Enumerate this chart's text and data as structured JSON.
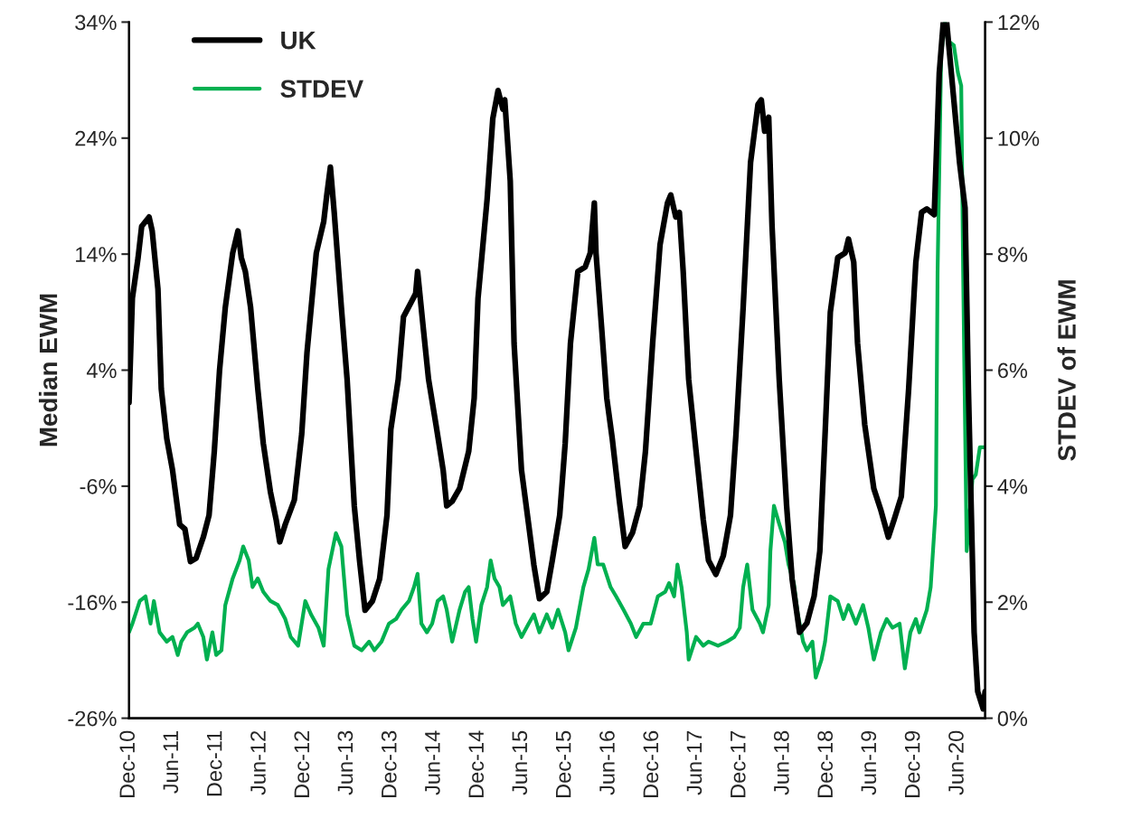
{
  "chart_data": {
    "type": "line",
    "ylabel": "Median EWM",
    "y2label": "STDEV of EWM",
    "legend": "top left",
    "grid": false,
    "marker": "none",
    "line_style": "solid",
    "xlim": [
      "2010-12-01",
      "2020-09-23"
    ],
    "xticks": [
      {
        "value": "2010-12-01",
        "label": "Dec-10"
      },
      {
        "value": "2011-06-01",
        "label": "Jun-11"
      },
      {
        "value": "2011-12-01",
        "label": "Dec-11"
      },
      {
        "value": "2012-06-01",
        "label": "Jun-12"
      },
      {
        "value": "2012-12-01",
        "label": "Dec-12"
      },
      {
        "value": "2013-06-01",
        "label": "Jun-13"
      },
      {
        "value": "2013-12-01",
        "label": "Dec-13"
      },
      {
        "value": "2014-06-01",
        "label": "Jun-14"
      },
      {
        "value": "2014-12-01",
        "label": "Dec-14"
      },
      {
        "value": "2015-06-01",
        "label": "Jun-15"
      },
      {
        "value": "2015-12-01",
        "label": "Dec-15"
      },
      {
        "value": "2016-06-01",
        "label": "Jun-16"
      },
      {
        "value": "2016-12-01",
        "label": "Dec-16"
      },
      {
        "value": "2017-06-01",
        "label": "Jun-17"
      },
      {
        "value": "2017-12-01",
        "label": "Dec-17"
      },
      {
        "value": "2018-06-01",
        "label": "Jun-18"
      },
      {
        "value": "2018-12-01",
        "label": "Dec-18"
      },
      {
        "value": "2019-06-01",
        "label": "Jun-19"
      },
      {
        "value": "2019-12-01",
        "label": "Dec-19"
      },
      {
        "value": "2020-06-01",
        "label": "Jun-20"
      }
    ],
    "ylim": [
      -26,
      34
    ],
    "yticks": [
      {
        "value": -26,
        "label": "-26%"
      },
      {
        "value": -16,
        "label": "-16%"
      },
      {
        "value": -6,
        "label": "-6%"
      },
      {
        "value": 4,
        "label": "4%"
      },
      {
        "value": 14,
        "label": "14%"
      },
      {
        "value": 24,
        "label": "24%"
      },
      {
        "value": 34,
        "label": "34%"
      }
    ],
    "y2lim": [
      0,
      12
    ],
    "y2ticks": [
      {
        "value": 0,
        "label": "0%"
      },
      {
        "value": 2,
        "label": "2%"
      },
      {
        "value": 4,
        "label": "4%"
      },
      {
        "value": 6,
        "label": "6%"
      },
      {
        "value": 8,
        "label": "8%"
      },
      {
        "value": 10,
        "label": "10%"
      },
      {
        "value": 12,
        "label": "12%"
      }
    ],
    "series": [
      {
        "name": "UK",
        "color": "#000000",
        "axis": "y",
        "x": [
          "2010-12-01",
          "2010-12-15",
          "2011-01-08",
          "2011-01-23",
          "2011-02-23",
          "2011-03-08",
          "2011-04-01",
          "2011-04-15",
          "2011-05-08",
          "2011-06-01",
          "2011-07-01",
          "2011-07-23",
          "2011-08-15",
          "2011-09-08",
          "2011-10-08",
          "2011-11-01",
          "2011-11-23",
          "2011-12-15",
          "2012-01-08",
          "2012-02-08",
          "2012-03-01",
          "2012-03-15",
          "2012-04-01",
          "2012-04-23",
          "2012-05-23",
          "2012-06-15",
          "2012-07-15",
          "2012-08-08",
          "2012-08-23",
          "2012-09-15",
          "2012-10-23",
          "2012-11-23",
          "2012-12-15",
          "2013-01-23",
          "2013-02-23",
          "2013-03-08",
          "2013-03-23",
          "2013-04-08",
          "2013-05-08",
          "2013-06-01",
          "2013-07-01",
          "2013-07-23",
          "2013-08-15",
          "2013-09-15",
          "2013-10-15",
          "2013-11-15",
          "2013-12-01",
          "2014-01-01",
          "2014-01-23",
          "2014-02-23",
          "2014-03-15",
          "2014-03-23",
          "2014-04-15",
          "2014-05-08",
          "2014-06-08",
          "2014-07-08",
          "2014-07-23",
          "2014-08-15",
          "2014-09-15",
          "2014-10-23",
          "2014-11-15",
          "2014-12-01",
          "2015-01-08",
          "2015-02-01",
          "2015-02-23",
          "2015-03-15",
          "2015-03-23",
          "2015-04-15",
          "2015-05-01",
          "2015-06-01",
          "2015-07-01",
          "2015-07-23",
          "2015-08-15",
          "2015-09-15",
          "2015-10-08",
          "2015-11-08",
          "2015-12-01",
          "2015-12-23",
          "2016-01-23",
          "2016-02-23",
          "2016-03-15",
          "2016-04-01",
          "2016-04-08",
          "2016-05-01",
          "2016-05-23",
          "2016-06-15",
          "2016-07-15",
          "2016-08-08",
          "2016-09-08",
          "2016-10-08",
          "2016-11-01",
          "2016-12-01",
          "2017-01-01",
          "2017-02-01",
          "2017-02-15",
          "2017-03-08",
          "2017-03-23",
          "2017-04-08",
          "2017-05-01",
          "2017-06-01",
          "2017-07-01",
          "2017-07-23",
          "2017-08-23",
          "2017-09-23",
          "2017-10-23",
          "2017-11-15",
          "2017-12-15",
          "2018-01-15",
          "2018-02-15",
          "2018-03-01",
          "2018-03-15",
          "2018-04-01",
          "2018-04-15",
          "2018-05-15",
          "2018-06-15",
          "2018-07-08",
          "2018-08-08",
          "2018-09-08",
          "2018-10-08",
          "2018-11-01",
          "2018-11-23",
          "2018-12-15",
          "2019-01-15",
          "2019-02-15",
          "2019-03-01",
          "2019-03-23",
          "2019-04-08",
          "2019-05-08",
          "2019-06-15",
          "2019-07-15",
          "2019-08-15",
          "2019-09-08",
          "2019-10-08",
          "2019-11-08",
          "2019-12-08",
          "2020-01-01",
          "2020-01-23",
          "2020-02-23",
          "2020-03-15",
          "2020-04-01",
          "2020-04-15",
          "2020-05-15",
          "2020-06-08",
          "2020-07-01",
          "2020-07-15",
          "2020-08-08",
          "2020-08-23",
          "2020-09-15",
          "2020-09-23"
        ],
        "values": [
          1.2,
          10.2,
          13.7,
          16.4,
          17.2,
          16.0,
          11.0,
          2.4,
          -1.9,
          -4.6,
          -9.3,
          -9.7,
          -12.5,
          -12.2,
          -10.4,
          -8.5,
          -3.0,
          4.0,
          9.4,
          14.1,
          16.0,
          13.7,
          12.5,
          9.4,
          2.4,
          -2.3,
          -6.5,
          -8.9,
          -10.8,
          -9.3,
          -7.2,
          -1.5,
          5.5,
          14.1,
          16.8,
          19.1,
          21.5,
          17.6,
          9.4,
          3.2,
          -7.7,
          -12.4,
          -16.7,
          -15.9,
          -14.0,
          -8.5,
          -1.1,
          3.2,
          8.6,
          9.8,
          10.6,
          12.5,
          7.8,
          3.2,
          -0.7,
          -4.6,
          -7.7,
          -7.3,
          -6.2,
          -3.0,
          1.6,
          10.2,
          18.7,
          25.7,
          28.1,
          26.5,
          27.3,
          20.3,
          6.3,
          -4.6,
          -9.3,
          -12.8,
          -15.7,
          -15.1,
          -12.4,
          -8.5,
          -2.3,
          6.3,
          12.5,
          12.9,
          14.1,
          18.4,
          14.1,
          7.8,
          1.6,
          -1.9,
          -7.3,
          -11.2,
          -10.0,
          -7.7,
          -3.0,
          6.3,
          14.8,
          18.4,
          19.1,
          17.2,
          17.6,
          12.5,
          3.2,
          -3.0,
          -8.9,
          -12.4,
          -13.6,
          -12.0,
          -8.5,
          -1.5,
          9.4,
          21.9,
          26.9,
          27.3,
          24.6,
          25.8,
          16.4,
          3.2,
          -7.7,
          -14.0,
          -18.6,
          -17.8,
          -15.5,
          -11.6,
          -1.5,
          9.0,
          13.7,
          14.1,
          15.3,
          13.3,
          6.3,
          -0.7,
          -6.2,
          -8.1,
          -10.4,
          -8.9,
          -6.9,
          2.4,
          13.3,
          17.6,
          17.9,
          17.4,
          29.6,
          34,
          34,
          27.3,
          21.9,
          18.0,
          2.4,
          -18.6,
          -23.7,
          -25.2,
          -23.7
        ]
      },
      {
        "name": "STDEV",
        "color": "#00b050",
        "axis": "y2",
        "x": [
          "2010-12-01",
          "2010-12-15",
          "2011-01-15",
          "2011-02-08",
          "2011-03-01",
          "2011-03-15",
          "2011-04-08",
          "2011-05-08",
          "2011-06-01",
          "2011-06-23",
          "2011-07-08",
          "2011-08-01",
          "2011-09-01",
          "2011-09-15",
          "2011-10-08",
          "2011-10-23",
          "2011-11-15",
          "2011-12-01",
          "2011-12-23",
          "2012-01-08",
          "2012-02-08",
          "2012-03-08",
          "2012-03-23",
          "2012-04-15",
          "2012-05-01",
          "2012-05-23",
          "2012-06-15",
          "2012-07-15",
          "2012-08-15",
          "2012-09-15",
          "2012-10-08",
          "2012-11-08",
          "2012-12-08",
          "2013-01-01",
          "2013-02-01",
          "2013-02-23",
          "2013-03-15",
          "2013-04-15",
          "2013-05-08",
          "2013-06-01",
          "2013-07-01",
          "2013-08-01",
          "2013-09-01",
          "2013-09-23",
          "2013-10-23",
          "2013-11-23",
          "2013-12-23",
          "2014-01-15",
          "2014-02-15",
          "2014-03-08",
          "2014-03-23",
          "2014-04-08",
          "2014-05-01",
          "2014-05-23",
          "2014-06-15",
          "2014-07-08",
          "2014-07-23",
          "2014-08-15",
          "2014-09-15",
          "2014-10-08",
          "2014-10-23",
          "2014-11-08",
          "2014-11-23",
          "2014-12-15",
          "2015-01-08",
          "2015-01-23",
          "2015-02-08",
          "2015-03-01",
          "2015-03-15",
          "2015-04-15",
          "2015-05-08",
          "2015-06-01",
          "2015-07-01",
          "2015-07-23",
          "2015-08-15",
          "2015-09-15",
          "2015-10-08",
          "2015-11-01",
          "2015-12-01",
          "2015-12-15",
          "2016-01-15",
          "2016-02-15",
          "2016-03-08",
          "2016-04-01",
          "2016-04-15",
          "2016-05-08",
          "2016-06-08",
          "2016-07-01",
          "2016-08-01",
          "2016-09-01",
          "2016-09-23",
          "2016-10-23",
          "2016-11-23",
          "2016-12-23",
          "2017-01-23",
          "2017-02-08",
          "2017-03-01",
          "2017-03-15",
          "2017-04-01",
          "2017-04-23",
          "2017-05-01",
          "2017-06-01",
          "2017-07-01",
          "2017-07-23",
          "2017-09-01",
          "2017-10-08",
          "2017-11-08",
          "2017-12-01",
          "2017-12-15",
          "2018-01-01",
          "2018-01-23",
          "2018-02-23",
          "2018-03-08",
          "2018-04-01",
          "2018-04-08",
          "2018-04-23",
          "2018-05-15",
          "2018-06-08",
          "2018-06-23",
          "2018-07-15",
          "2018-08-01",
          "2018-08-23",
          "2018-09-08",
          "2018-10-01",
          "2018-10-15",
          "2018-11-08",
          "2018-11-23",
          "2018-12-15",
          "2019-01-15",
          "2019-02-08",
          "2019-03-01",
          "2019-04-01",
          "2019-05-01",
          "2019-05-23",
          "2019-06-15",
          "2019-07-15",
          "2019-08-08",
          "2019-09-01",
          "2019-10-01",
          "2019-10-23",
          "2019-11-15",
          "2019-12-08",
          "2019-12-23",
          "2020-01-23",
          "2020-02-08",
          "2020-03-01",
          "2020-03-08",
          "2020-03-23",
          "2020-04-08",
          "2020-04-23",
          "2020-05-15",
          "2020-06-01",
          "2020-06-15",
          "2020-06-23",
          "2020-07-08",
          "2020-08-01",
          "2020-08-15",
          "2020-09-01",
          "2020-09-23"
        ],
        "values": [
          1.48,
          1.63,
          2.02,
          2.1,
          1.63,
          2.02,
          1.48,
          1.32,
          1.4,
          1.09,
          1.32,
          1.48,
          1.56,
          1.63,
          1.4,
          1.01,
          1.48,
          1.09,
          1.17,
          1.95,
          2.41,
          2.72,
          2.96,
          2.72,
          2.26,
          2.41,
          2.18,
          2.02,
          1.95,
          1.71,
          1.4,
          1.25,
          2.02,
          1.79,
          1.56,
          1.25,
          2.57,
          3.19,
          2.96,
          1.79,
          1.25,
          1.17,
          1.32,
          1.17,
          1.32,
          1.63,
          1.71,
          1.87,
          2.02,
          2.26,
          2.49,
          1.63,
          1.48,
          1.63,
          2.02,
          2.1,
          1.87,
          1.32,
          1.87,
          2.18,
          2.26,
          1.71,
          1.32,
          1.95,
          2.26,
          2.72,
          2.41,
          2.26,
          1.95,
          2.1,
          1.63,
          1.4,
          1.63,
          1.79,
          1.48,
          1.79,
          1.56,
          1.87,
          1.48,
          1.17,
          1.56,
          2.26,
          2.57,
          3.11,
          2.65,
          2.65,
          2.26,
          2.1,
          1.87,
          1.63,
          1.4,
          1.63,
          1.63,
          2.1,
          2.18,
          2.33,
          2.1,
          2.65,
          2.26,
          1.48,
          1.01,
          1.4,
          1.25,
          1.32,
          1.25,
          1.32,
          1.4,
          1.56,
          2.26,
          2.65,
          1.87,
          1.63,
          1.48,
          1.95,
          2.88,
          3.66,
          3.35,
          3.03,
          2.65,
          2.33,
          1.79,
          1.32,
          1.17,
          1.32,
          0.7,
          1.01,
          1.32,
          2.1,
          2.02,
          1.71,
          1.95,
          1.63,
          1.95,
          1.56,
          1.01,
          1.48,
          1.71,
          1.56,
          1.63,
          0.86,
          1.48,
          1.71,
          1.48,
          1.87,
          2.26,
          3.66,
          7.7,
          11.44,
          12.0,
          11.67,
          11.6,
          11.13,
          10.9,
          7.7,
          2.88,
          4.12,
          4.2,
          4.67,
          4.67
        ]
      }
    ]
  }
}
